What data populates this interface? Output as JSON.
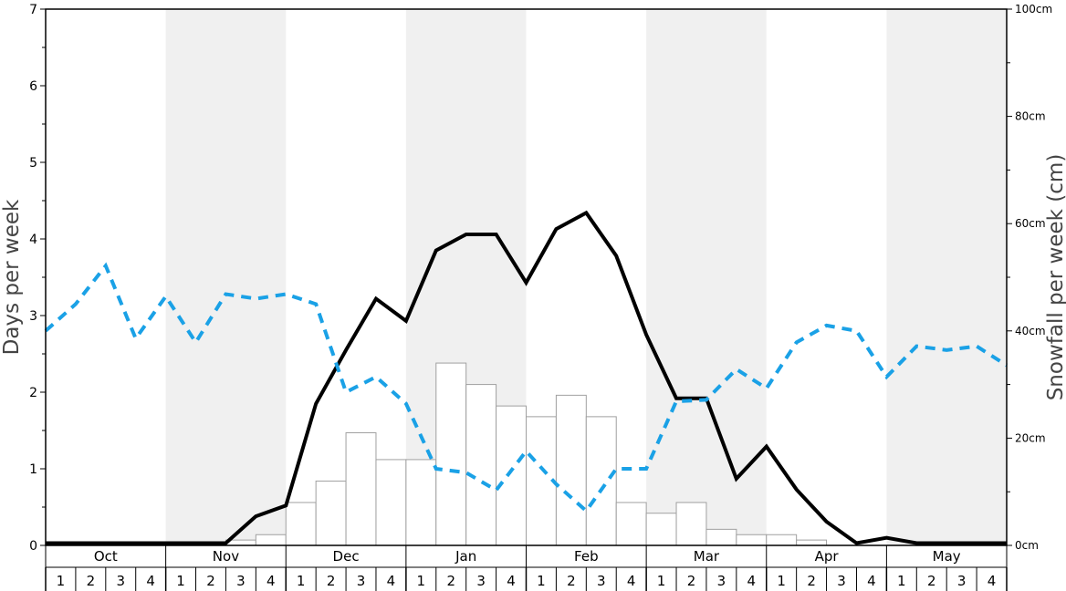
{
  "chart_data": {
    "type": "bar",
    "ylabel_left": "Days per week",
    "ylabel_right": "Snowfall per week (cm)",
    "ylim_left": [
      0,
      7
    ],
    "ylim_right": [
      0,
      100
    ],
    "left_ticks": [
      "0",
      "1",
      "2",
      "3",
      "4",
      "5",
      "6",
      "7"
    ],
    "right_ticks": [
      "0cm",
      "20cm",
      "40cm",
      "60cm",
      "80cm",
      "100cm"
    ],
    "months": [
      "Oct",
      "Nov",
      "Dec",
      "Jan",
      "Feb",
      "Mar",
      "Apr",
      "May"
    ],
    "week_labels": [
      "1",
      "2",
      "3",
      "4"
    ],
    "colors": {
      "line_solid": "#000000",
      "line_dashed": "#1aa1e6",
      "band": "#f0f0f0",
      "bar_fill": "#ffffff",
      "bar_stroke": "#a0a0a0"
    },
    "series": [
      {
        "type": "bar",
        "axis": "right",
        "values": [
          0,
          0,
          0,
          0,
          0,
          0,
          1,
          2,
          8,
          12,
          21,
          16,
          16,
          34,
          30,
          26,
          24,
          28,
          24,
          8,
          6,
          8,
          3,
          2,
          2,
          1,
          0,
          0,
          0,
          0,
          0,
          0
        ]
      },
      {
        "type": "line",
        "style": "solid",
        "axis": "left",
        "values": [
          0.03,
          0.03,
          0.03,
          0.03,
          0.03,
          0.03,
          0.03,
          0.38,
          0.52,
          1.85,
          2.55,
          3.22,
          2.93,
          3.85,
          4.06,
          4.06,
          3.43,
          4.13,
          4.34,
          3.78,
          2.75,
          1.92,
          1.92,
          0.87,
          1.29,
          0.73,
          0.31,
          0.03,
          0.1,
          0.03,
          0.03,
          0.03,
          0.03
        ]
      },
      {
        "type": "line",
        "style": "dashed",
        "axis": "left",
        "values": [
          2.8,
          3.15,
          3.65,
          2.7,
          3.25,
          2.65,
          3.28,
          3.22,
          3.28,
          3.15,
          2.0,
          2.2,
          1.85,
          1.0,
          0.95,
          0.72,
          1.23,
          0.8,
          0.45,
          1.0,
          1.0,
          1.88,
          1.9,
          2.3,
          2.05,
          2.65,
          2.87,
          2.8,
          2.2,
          2.6,
          2.55,
          2.6,
          2.35
        ]
      }
    ]
  }
}
